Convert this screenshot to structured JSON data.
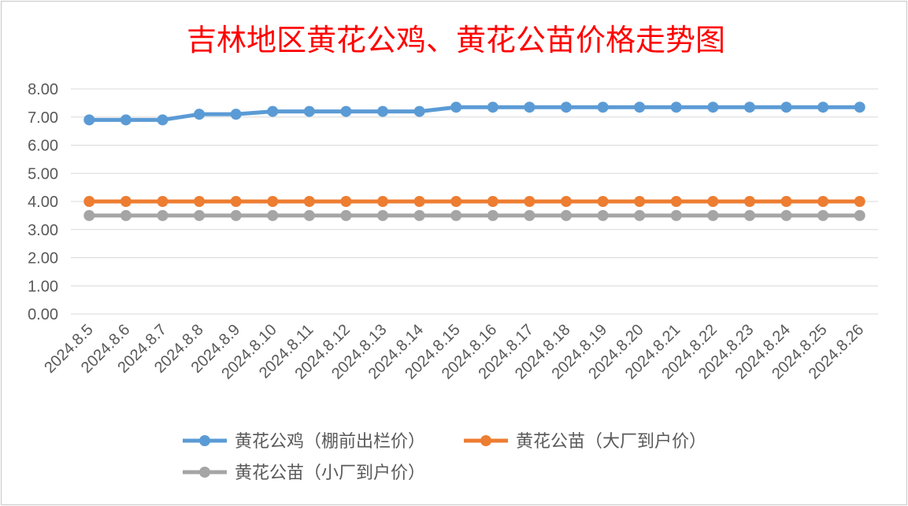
{
  "chart_data": {
    "type": "line",
    "title": "吉林地区黄花公鸡、黄花公苗价格走势图",
    "xlabel": "",
    "ylabel": "",
    "ylim": [
      0,
      8
    ],
    "y_ticks": [
      "0.00",
      "1.00",
      "2.00",
      "3.00",
      "4.00",
      "5.00",
      "6.00",
      "7.00",
      "8.00"
    ],
    "grid": true,
    "legend_position": "bottom",
    "categories": [
      "2024.8.5",
      "2024.8.6",
      "2024.8.7",
      "2024.8.8",
      "2024.8.9",
      "2024.8.10",
      "2024.8.11",
      "2024.8.12",
      "2024.8.13",
      "2024.8.14",
      "2024.8.15",
      "2024.8.16",
      "2024.8.17",
      "2024.8.18",
      "2024.8.19",
      "2024.8.20",
      "2024.8.21",
      "2024.8.22",
      "2024.8.23",
      "2024.8.24",
      "2024.8.25",
      "2024.8.26"
    ],
    "series": [
      {
        "name": "黄花公鸡（棚前出栏价）",
        "color": "#5b9bd5",
        "values": [
          6.9,
          6.9,
          6.9,
          7.1,
          7.1,
          7.2,
          7.2,
          7.2,
          7.2,
          7.2,
          7.35,
          7.35,
          7.35,
          7.35,
          7.35,
          7.35,
          7.35,
          7.35,
          7.35,
          7.35,
          7.35,
          7.35
        ]
      },
      {
        "name": "黄花公苗（大厂到户价）",
        "color": "#ed7d31",
        "values": [
          4.0,
          4.0,
          4.0,
          4.0,
          4.0,
          4.0,
          4.0,
          4.0,
          4.0,
          4.0,
          4.0,
          4.0,
          4.0,
          4.0,
          4.0,
          4.0,
          4.0,
          4.0,
          4.0,
          4.0,
          4.0,
          4.0
        ]
      },
      {
        "name": "黄花公苗（小厂到户价）",
        "color": "#a5a5a5",
        "values": [
          3.5,
          3.5,
          3.5,
          3.5,
          3.5,
          3.5,
          3.5,
          3.5,
          3.5,
          3.5,
          3.5,
          3.5,
          3.5,
          3.5,
          3.5,
          3.5,
          3.5,
          3.5,
          3.5,
          3.5,
          3.5,
          3.5
        ]
      }
    ],
    "title_color": "#ff0000"
  }
}
